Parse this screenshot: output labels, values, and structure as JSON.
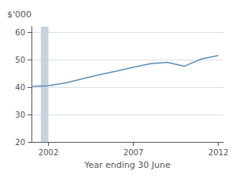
{
  "chart_data": {
    "type": "line",
    "x": [
      2001,
      2002,
      2003,
      2004,
      2005,
      2006,
      2007,
      2008,
      2009,
      2010,
      2011,
      2012
    ],
    "values": [
      40.2,
      40.5,
      41.5,
      43.0,
      44.5,
      45.8,
      47.2,
      48.5,
      49.0,
      47.6,
      50.2,
      51.5
    ],
    "color": "#5b8db8",
    "xlim": [
      2001,
      2012.3
    ],
    "xticks": [
      2002,
      2007,
      2012
    ],
    "ylim": [
      20,
      62
    ],
    "yticks": [
      20,
      30,
      40,
      50,
      60
    ],
    "xlabel": "Year ending 30 June",
    "ylabel": "$'000",
    "grid": true,
    "shaded_span": {
      "x": [
        2001.55,
        2002.0
      ],
      "color": "#c5d3de"
    }
  }
}
